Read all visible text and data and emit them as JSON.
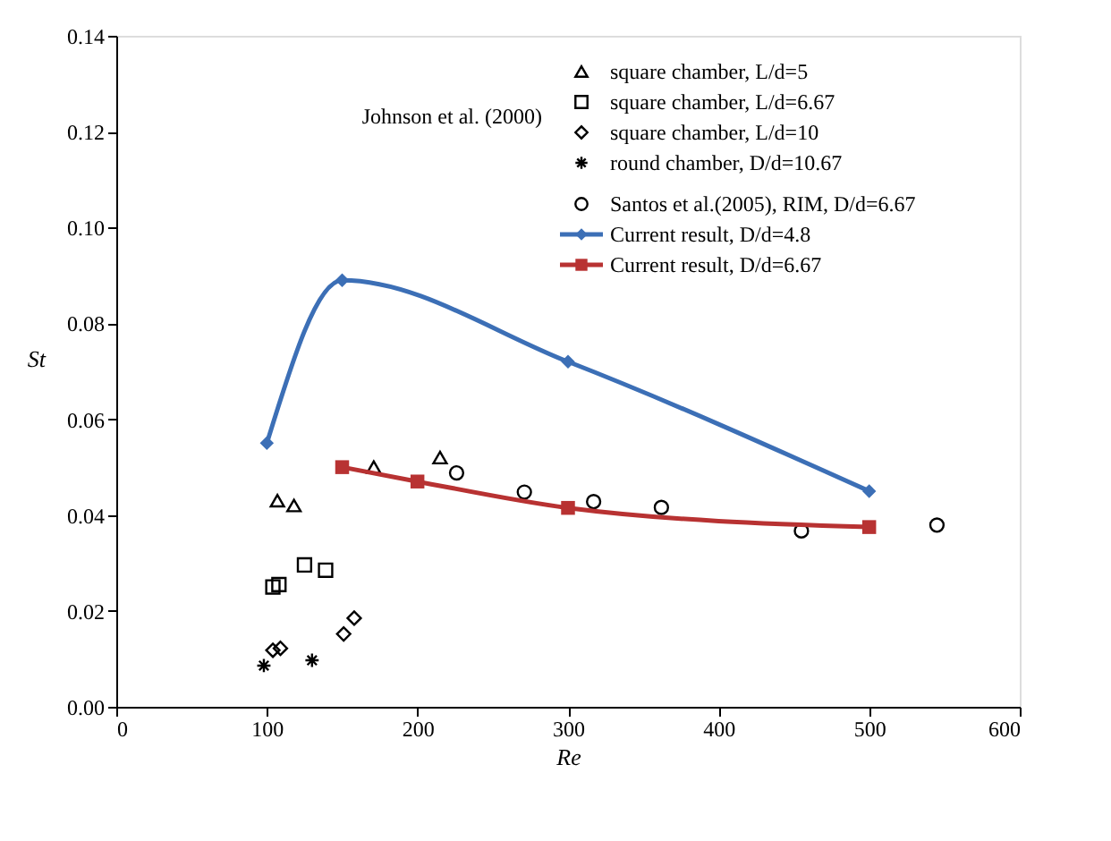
{
  "chart_data": {
    "type": "scatter",
    "xlabel": "Re",
    "ylabel": "St",
    "xlim": [
      0,
      600
    ],
    "xticks": [
      0,
      100,
      200,
      300,
      400,
      500,
      600
    ],
    "ylim": [
      0,
      0.14
    ],
    "yticks": [
      {
        "value": 0,
        "label": "0.00"
      },
      {
        "value": 0.02,
        "label": "0.02"
      },
      {
        "value": 0.04,
        "label": "0.04"
      },
      {
        "value": 0.06,
        "label": "0.06"
      },
      {
        "value": 0.08,
        "label": "0.08"
      },
      {
        "value": 0.1,
        "label": "0.10"
      },
      {
        "value": 0.12,
        "label": "0.12"
      },
      {
        "value": 0.14,
        "label": "0.14"
      }
    ],
    "grid": false,
    "legend": "top right",
    "annotations": [
      "Johnson et al. (2000)"
    ],
    "series": [
      {
        "name": "square chamber, L/d=5",
        "marker": "triangle",
        "color": "#000000",
        "x": [
          107,
          118,
          171,
          215
        ],
        "values": [
          0.043,
          0.042,
          0.05,
          0.052
        ]
      },
      {
        "name": "square chamber, L/d=6.67",
        "marker": "square",
        "color": "#000000",
        "x": [
          104,
          108,
          125,
          139
        ],
        "values": [
          0.025,
          0.0255,
          0.0296,
          0.0285
        ]
      },
      {
        "name": "square chamber, L/d=10",
        "marker": "diamond",
        "color": "#000000",
        "x": [
          104,
          109,
          151,
          158
        ],
        "values": [
          0.0118,
          0.0122,
          0.0152,
          0.0185
        ]
      },
      {
        "name": "round chamber, D/d=10.67",
        "marker": "cross",
        "color": "#000000",
        "x": [
          98,
          130
        ],
        "values": [
          0.0086,
          0.0097
        ]
      },
      {
        "name": "Santos et al.(2005), RIM, D/d=6.67",
        "marker": "circle",
        "color": "#000000",
        "x": [
          226,
          271,
          317,
          362,
          455,
          545
        ],
        "values": [
          0.0488,
          0.0448,
          0.0428,
          0.0416,
          0.0367,
          0.0379
        ]
      },
      {
        "name": "Current result, D/d=4.8",
        "type": "line",
        "marker": "diamond",
        "color": "#3c6fb6",
        "x": [
          100,
          150,
          300,
          500
        ],
        "values": [
          0.055,
          0.089,
          0.072,
          0.045
        ]
      },
      {
        "name": "Current result, D/d=6.67",
        "type": "line",
        "marker": "square",
        "color": "#b83232",
        "x": [
          150,
          200,
          300,
          500
        ],
        "values": [
          0.05,
          0.047,
          0.0415,
          0.0375
        ]
      }
    ]
  }
}
